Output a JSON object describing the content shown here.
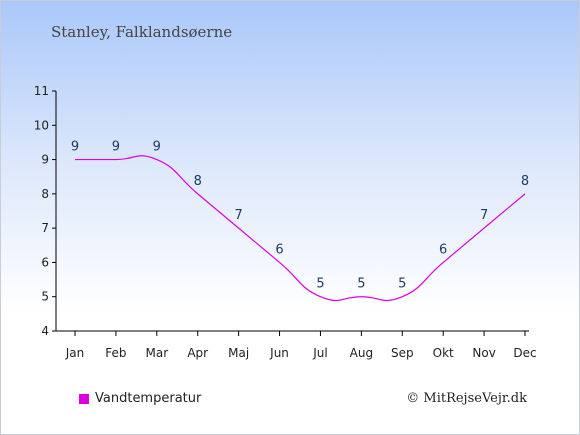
{
  "header": {
    "location": "Stanley, Falklandsøerne"
  },
  "legend": {
    "label": "Vandtemperatur",
    "color": "#dd00dd"
  },
  "footer": {
    "copyright": "© MitRejseVejr.dk"
  },
  "chart_data": {
    "type": "line",
    "title": "",
    "xlabel": "",
    "ylabel": "",
    "categories": [
      "Jan",
      "Feb",
      "Mar",
      "Apr",
      "Maj",
      "Jun",
      "Jul",
      "Aug",
      "Sep",
      "Okt",
      "Nov",
      "Dec"
    ],
    "series": [
      {
        "name": "Vandtemperatur",
        "color": "#dd00dd",
        "values": [
          9,
          9,
          9,
          8,
          7,
          6,
          5,
          5,
          5,
          6,
          7,
          8
        ]
      }
    ],
    "ylim": [
      4,
      11
    ],
    "yticks": [
      4,
      5,
      6,
      7,
      8,
      9,
      10,
      11
    ],
    "grid": false,
    "legend_position": "bottom-left"
  }
}
